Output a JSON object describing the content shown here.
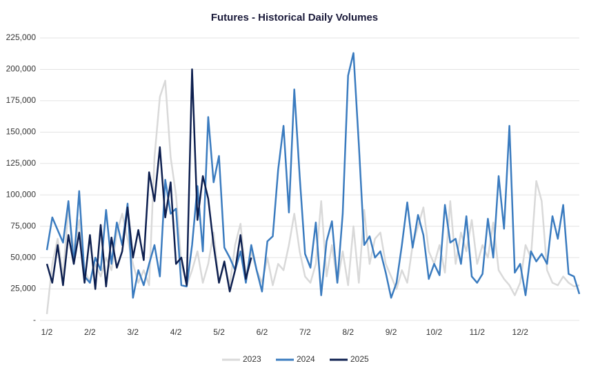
{
  "chart_data": {
    "type": "line",
    "title": "Futures - Historical Daily Volumes",
    "categories": [
      "1/2",
      null,
      null,
      null,
      null,
      null,
      null,
      null,
      "2/2",
      null,
      null,
      null,
      null,
      null,
      null,
      null,
      "3/2",
      null,
      null,
      null,
      null,
      null,
      null,
      null,
      "4/2",
      null,
      null,
      null,
      null,
      null,
      null,
      null,
      "5/2",
      null,
      null,
      null,
      null,
      null,
      null,
      null,
      "6/2",
      null,
      null,
      null,
      null,
      null,
      null,
      null,
      "7/2",
      null,
      null,
      null,
      null,
      null,
      null,
      null,
      "8/2",
      null,
      null,
      null,
      null,
      null,
      null,
      null,
      "9/2",
      null,
      null,
      null,
      null,
      null,
      null,
      null,
      "10/2",
      null,
      null,
      null,
      null,
      null,
      null,
      null,
      "11/2",
      null,
      null,
      null,
      null,
      null,
      null,
      null,
      "12/2",
      null,
      null,
      null,
      null,
      null,
      null,
      null,
      null,
      null,
      null,
      null
    ],
    "series": [
      {
        "name": "2023",
        "color": "#d9d9d9",
        "values": [
          5000,
          45000,
          65000,
          35000,
          90000,
          55000,
          80000,
          40000,
          30000,
          45000,
          35000,
          50000,
          40000,
          70000,
          85000,
          65000,
          45000,
          30000,
          40000,
          28000,
          130000,
          178000,
          191000,
          130000,
          100000,
          45000,
          28000,
          40000,
          55000,
          30000,
          45000,
          70000,
          30000,
          45000,
          28000,
          60000,
          77000,
          35000,
          55000,
          40000,
          30000,
          50000,
          28000,
          45000,
          40000,
          60000,
          85000,
          55000,
          35000,
          30000,
          45000,
          95000,
          35000,
          60000,
          30000,
          55000,
          28000,
          75000,
          30000,
          88000,
          45000,
          65000,
          70000,
          45000,
          35000,
          25000,
          40000,
          30000,
          60000,
          75000,
          90000,
          55000,
          45000,
          60000,
          38000,
          95000,
          45000,
          70000,
          55000,
          80000,
          45000,
          60000,
          50000,
          78000,
          40000,
          33000,
          28000,
          20000,
          30000,
          60000,
          50000,
          111000,
          95000,
          40000,
          30000,
          28000,
          35000,
          30000,
          27000,
          28000
        ]
      },
      {
        "name": "2024",
        "color": "#3a7bbf",
        "values": [
          56000,
          82000,
          72000,
          62000,
          95000,
          45000,
          103000,
          35000,
          30000,
          50000,
          40000,
          88000,
          45000,
          78000,
          60000,
          93000,
          18000,
          40000,
          28000,
          45000,
          60000,
          35000,
          112000,
          85000,
          89000,
          28000,
          27000,
          60000,
          107000,
          55000,
          162000,
          110000,
          131000,
          58000,
          50000,
          40000,
          55000,
          30000,
          60000,
          40000,
          23000,
          63000,
          67000,
          120000,
          155000,
          86000,
          184000,
          115000,
          53000,
          42000,
          78000,
          20000,
          63000,
          79000,
          30000,
          85000,
          195000,
          213000,
          140000,
          60000,
          67000,
          50000,
          55000,
          38000,
          18000,
          30000,
          60000,
          94000,
          58000,
          84000,
          68000,
          33000,
          45000,
          36000,
          92000,
          62000,
          65000,
          45000,
          83000,
          35000,
          30000,
          37000,
          81000,
          50000,
          115000,
          73000,
          155000,
          38000,
          45000,
          20000,
          55000,
          47000,
          53000,
          45000,
          83000,
          65000,
          92000,
          37000,
          35000,
          21000
        ]
      },
      {
        "name": "2025",
        "color": "#0d1f4f",
        "values": [
          45000,
          30000,
          60000,
          28000,
          68000,
          45000,
          70000,
          30000,
          68000,
          25000,
          76000,
          27000,
          66000,
          42000,
          55000,
          90000,
          50000,
          72000,
          48000,
          118000,
          95000,
          138000,
          82000,
          110000,
          45000,
          50000,
          28000,
          200000,
          80000,
          115000,
          97000,
          60000,
          30000,
          47000,
          23000,
          40000,
          68000,
          33000,
          50000,
          null,
          null,
          null,
          null,
          null,
          null,
          null,
          null,
          null,
          null,
          null,
          null,
          null,
          null,
          null,
          null,
          null,
          null,
          null,
          null,
          null,
          null,
          null,
          null,
          null,
          null,
          null,
          null,
          null,
          null,
          null,
          null,
          null,
          null,
          null,
          null,
          null,
          null,
          null,
          null,
          null,
          null,
          null,
          null,
          null,
          null,
          null,
          null,
          null,
          null,
          null,
          null,
          null,
          null,
          null,
          null,
          null,
          null,
          null,
          null,
          null
        ]
      }
    ],
    "ylim": [
      0,
      225000
    ],
    "yticks": [
      {
        "value": 0,
        "label": "-"
      },
      {
        "value": 25000,
        "label": "25,000"
      },
      {
        "value": 50000,
        "label": "50,000"
      },
      {
        "value": 75000,
        "label": "75,000"
      },
      {
        "value": 100000,
        "label": "100,000"
      },
      {
        "value": 125000,
        "label": "125,000"
      },
      {
        "value": 150000,
        "label": "150,000"
      },
      {
        "value": 175000,
        "label": "175,000"
      },
      {
        "value": 200000,
        "label": "200,000"
      },
      {
        "value": 225000,
        "label": "225,000"
      }
    ],
    "grid": true,
    "legend": "bottom"
  }
}
